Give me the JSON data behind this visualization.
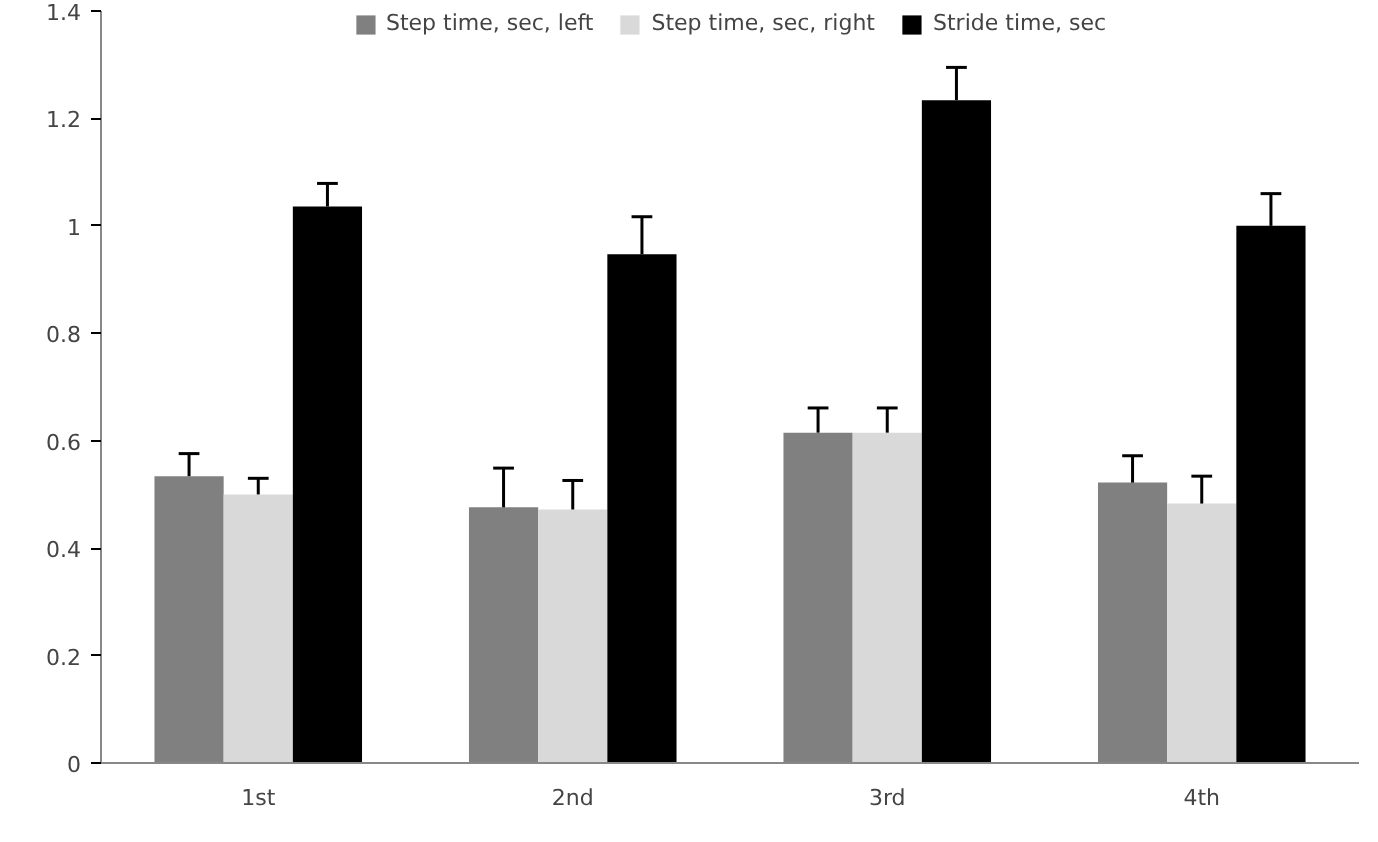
{
  "chart_data": {
    "type": "bar",
    "categories": [
      "1st",
      "2nd",
      "3rd",
      "4th"
    ],
    "series": [
      {
        "name": "Step time, sec, left",
        "color": "#808080",
        "values": [
          0.534,
          0.476,
          0.615,
          0.522
        ],
        "errors": [
          [
            0.534,
            0.576
          ],
          [
            0.476,
            0.549
          ],
          [
            0.615,
            0.661
          ],
          [
            0.522,
            0.572
          ]
        ]
      },
      {
        "name": "Step time, sec, right",
        "color": "#d9d9d9",
        "values": [
          0.5,
          0.472,
          0.615,
          0.483
        ],
        "errors": [
          [
            0.5,
            0.53
          ],
          [
            0.472,
            0.526
          ],
          [
            0.615,
            0.661
          ],
          [
            0.483,
            0.534
          ]
        ]
      },
      {
        "name": "Stride time, sec",
        "color": "#000000",
        "values": [
          1.036,
          0.947,
          1.234,
          1.0
        ],
        "errors": [
          [
            1.036,
            1.079
          ],
          [
            0.947,
            1.017
          ],
          [
            1.234,
            1.295
          ],
          [
            1.0,
            1.06
          ]
        ]
      }
    ],
    "ylim": [
      0,
      1.4
    ],
    "yticks": [
      0,
      0.2,
      0.4,
      0.6,
      0.8,
      1,
      1.2,
      1.4
    ],
    "grid": false,
    "legend": "top"
  }
}
